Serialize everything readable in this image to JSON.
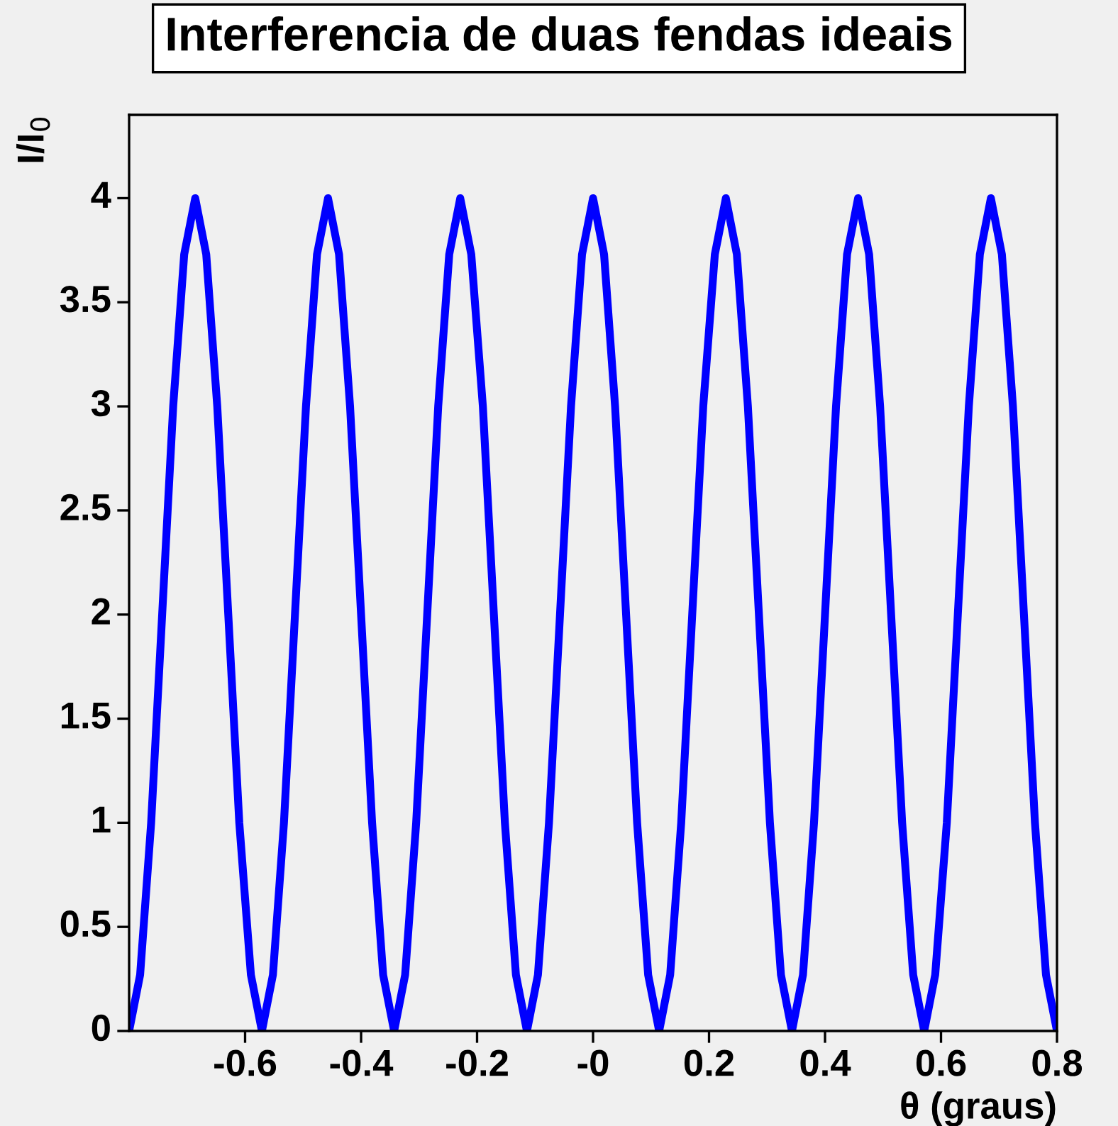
{
  "chart_data": {
    "type": "line",
    "title": "Interferencia de duas fendas ideais",
    "xlabel": "θ (graus)",
    "ylabel": "I/I$_{0}$",
    "x": [
      -0.8,
      -0.781,
      -0.762,
      -0.743,
      -0.724,
      -0.705,
      -0.686,
      -0.667,
      -0.648,
      -0.629,
      -0.61,
      -0.59,
      -0.571,
      -0.552,
      -0.533,
      -0.514,
      -0.495,
      -0.476,
      -0.457,
      -0.438,
      -0.419,
      -0.4,
      -0.381,
      -0.362,
      -0.343,
      -0.324,
      -0.305,
      -0.286,
      -0.267,
      -0.248,
      -0.229,
      -0.21,
      -0.19,
      -0.171,
      -0.152,
      -0.133,
      -0.114,
      -0.095,
      -0.076,
      -0.057,
      -0.038,
      -0.019,
      0,
      0.019,
      0.038,
      0.057,
      0.076,
      0.095,
      0.114,
      0.133,
      0.152,
      0.171,
      0.19,
      0.21,
      0.229,
      0.248,
      0.267,
      0.286,
      0.305,
      0.324,
      0.343,
      0.362,
      0.381,
      0.4,
      0.419,
      0.438,
      0.457,
      0.476,
      0.495,
      0.514,
      0.533,
      0.552,
      0.571,
      0.59,
      0.61,
      0.629,
      0.648,
      0.667,
      0.686,
      0.705,
      0.724,
      0.743,
      0.762,
      0.781,
      0.8
    ],
    "series": [
      {
        "color": "#0000ff",
        "values": [
          0,
          0.27,
          1,
          2,
          3,
          3.73,
          4,
          3.73,
          3,
          2,
          1,
          0.27,
          0,
          0.27,
          1,
          2,
          3,
          3.73,
          4,
          3.73,
          3,
          2,
          1,
          0.27,
          0,
          0.27,
          1,
          2,
          3,
          3.73,
          4,
          3.73,
          3,
          2,
          1,
          0.27,
          0,
          0.27,
          1,
          2,
          3,
          3.73,
          4,
          3.73,
          3,
          2,
          1,
          0.27,
          0,
          0.27,
          1,
          2,
          3,
          3.73,
          4,
          3.73,
          3,
          2,
          1,
          0.27,
          0,
          0.27,
          1,
          2,
          3,
          3.73,
          4,
          3.73,
          3,
          2,
          1,
          0.27,
          0,
          0.27,
          1,
          2,
          3,
          3.73,
          4,
          3.73,
          3,
          2,
          1,
          0.27,
          0
        ]
      }
    ],
    "xlim": [
      -0.8,
      0.8
    ],
    "xticks": [
      -0.6,
      -0.4,
      -0.2,
      {
        "value": 0,
        "label": "-0"
      },
      0.2,
      0.4,
      0.6,
      0.8
    ],
    "ylim": [
      0,
      4.4
    ],
    "yticks": [
      0,
      0.5,
      1,
      1.5,
      2,
      2.5,
      3,
      3.5,
      4
    ],
    "grid": false,
    "legend": false,
    "marker": "none",
    "line_style": "solid"
  }
}
